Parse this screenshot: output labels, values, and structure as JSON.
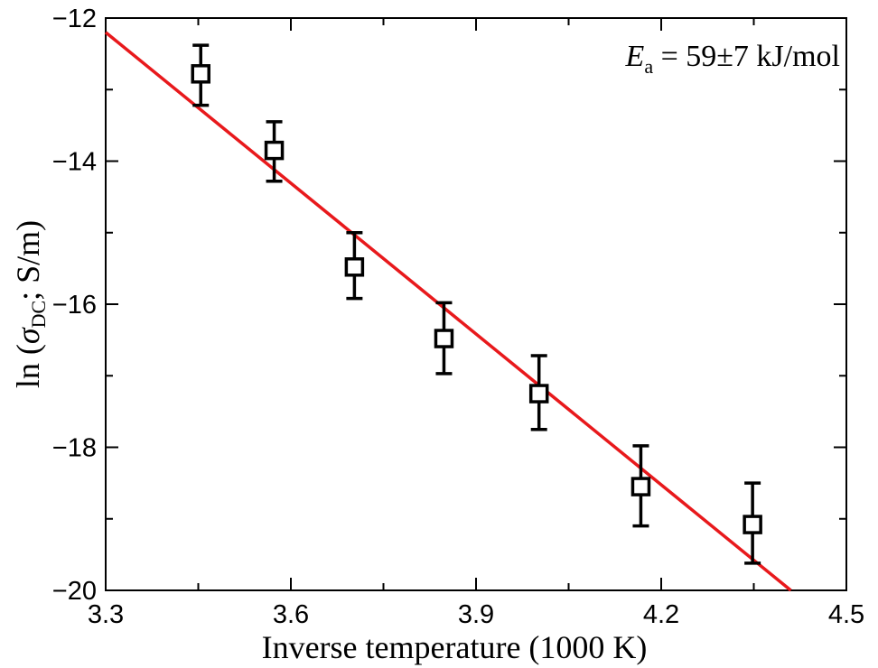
{
  "chart_data": {
    "type": "scatter",
    "xlabel": "Inverse temperature (1000 K)",
    "ylabel_parts": {
      "prefix": "ln (",
      "symbol": "σ",
      "subscript": "DC",
      "suffix": "; S/m)"
    },
    "annotation_parts": {
      "symbol": "E",
      "subscript": "a",
      "rest": " = 59±7 kJ/mol"
    },
    "xlim": [
      3.3,
      4.5
    ],
    "ylim": [
      -20,
      -12
    ],
    "xticks": [
      3.3,
      3.6,
      3.9,
      4.2,
      4.5
    ],
    "xtick_labels": [
      "3.3",
      "3.6",
      "3.9",
      "4.2",
      "4.5"
    ],
    "yticks": [
      -20,
      -18,
      -16,
      -14,
      -12
    ],
    "ytick_labels": [
      "−20",
      "−18",
      "−16",
      "−14",
      "−12"
    ],
    "points": [
      {
        "x": 3.454,
        "y": -12.78,
        "yerr_low": -13.22,
        "yerr_high": -12.38
      },
      {
        "x": 3.573,
        "y": -13.85,
        "yerr_low": -14.28,
        "yerr_high": -13.45
      },
      {
        "x": 3.703,
        "y": -15.48,
        "yerr_low": -15.92,
        "yerr_high": -15.0
      },
      {
        "x": 3.848,
        "y": -16.48,
        "yerr_low": -16.97,
        "yerr_high": -15.98
      },
      {
        "x": 4.002,
        "y": -17.25,
        "yerr_low": -17.75,
        "yerr_high": -16.72
      },
      {
        "x": 4.167,
        "y": -18.55,
        "yerr_low": -19.1,
        "yerr_high": -17.98
      },
      {
        "x": 4.348,
        "y": -19.08,
        "yerr_low": -19.62,
        "yerr_high": -18.5
      }
    ],
    "fit_line": {
      "x": [
        3.3,
        4.41
      ],
      "y": [
        -12.2,
        -20.0
      ],
      "color": "#e8191c"
    },
    "marker_color": "#000000"
  }
}
